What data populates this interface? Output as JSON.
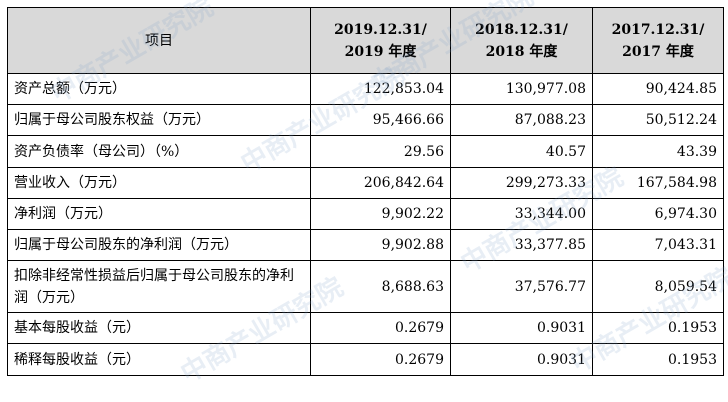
{
  "table": {
    "header": {
      "item": "项目",
      "cols": [
        {
          "line1": "2019.12.31/",
          "line2": "2019 年度"
        },
        {
          "line1": "2018.12.31/",
          "line2": "2018 年度"
        },
        {
          "line1": "2017.12.31/",
          "line2": "2017 年度"
        }
      ]
    },
    "rows": [
      {
        "label": "资产总额（万元）",
        "values": [
          "122,853.04",
          "130,977.08",
          "90,424.85"
        ]
      },
      {
        "label": "归属于母公司股东权益（万元）",
        "values": [
          "95,466.66",
          "87,088.23",
          "50,512.24"
        ]
      },
      {
        "label": "资产负债率（母公司）（%）",
        "values": [
          "29.56",
          "40.57",
          "43.39"
        ]
      },
      {
        "label": "营业收入（万元）",
        "values": [
          "206,842.64",
          "299,273.33",
          "167,584.98"
        ]
      },
      {
        "label": "净利润（万元）",
        "values": [
          "9,902.22",
          "33,344.00",
          "6,974.30"
        ]
      },
      {
        "label": "归属于母公司股东的净利润（万元）",
        "values": [
          "9,902.88",
          "33,377.85",
          "7,043.31"
        ]
      },
      {
        "label": "扣除非经常性损益后归属于母公司股东的净利润（万元）",
        "values": [
          "8,688.63",
          "37,576.77",
          "8,059.54"
        ]
      },
      {
        "label": "基本每股收益（元）",
        "values": [
          "0.2679",
          "0.9031",
          "0.1953"
        ]
      },
      {
        "label": "稀释每股收益（元）",
        "values": [
          "0.2679",
          "0.9031",
          "0.1953"
        ]
      }
    ]
  },
  "watermark": "中商产业研究院"
}
